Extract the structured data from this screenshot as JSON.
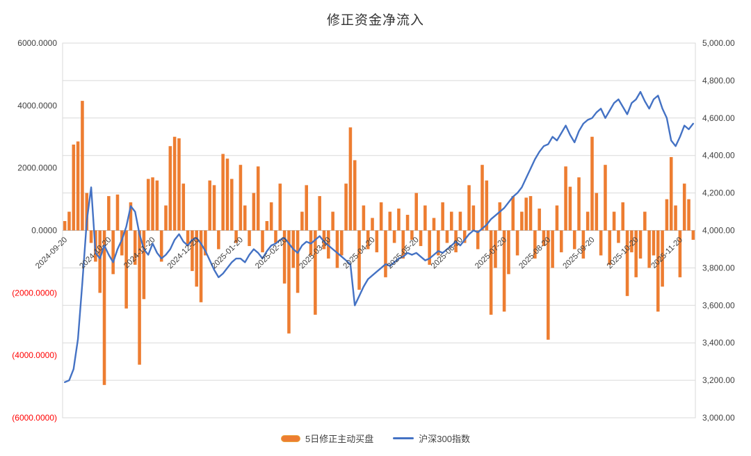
{
  "title": "修正资金净流入",
  "left_axis": {
    "labels": [
      "6000.0000",
      "4000.0000",
      "2000.0000",
      "0.0000",
      "(2000.0000)",
      "(4000.0000)",
      "(6000.0000)"
    ],
    "positive_color": "#404040",
    "negative_color": "#ff0000"
  },
  "right_axis": {
    "labels": [
      "5,000.00",
      "4,800.00",
      "4,600.00",
      "4,400.00",
      "4,200.00",
      "4,000.00",
      "3,800.00",
      "3,600.00",
      "3,400.00",
      "3,200.00",
      "3,000.00"
    ],
    "color": "#404040"
  },
  "x_axis": {
    "tick_labels": [
      "2024-09-20",
      "2024-10-20",
      "2024-11-20",
      "2024-12-20",
      "2025-01-20",
      "2025-02-20",
      "2025-03-20",
      "2025-04-20",
      "2025-05-20",
      "2025-06-20",
      "2025-07-20",
      "2025-08-20",
      "2025-09-20",
      "2025-10-20",
      "2025-11-20"
    ],
    "points_per_tick": 10,
    "label_color": "#404040"
  },
  "chart_data": {
    "type": "combo",
    "title": "修正资金净流入",
    "left_axis_range": [
      -6000,
      6000
    ],
    "right_axis_range": [
      3000,
      5000
    ],
    "gridlines": "horizontal",
    "legend_position": "bottom",
    "x_tick_labels": [
      "2024-09-20",
      "2024-10-20",
      "2024-11-20",
      "2024-12-20",
      "2025-01-20",
      "2025-02-20",
      "2025-03-20",
      "2025-04-20",
      "2025-05-20",
      "2025-06-20",
      "2025-07-20",
      "2025-08-20",
      "2025-09-20",
      "2025-10-20",
      "2025-11-20"
    ],
    "series": [
      {
        "name": "5日修正主动买盘",
        "type": "bar",
        "yaxis": "left",
        "color": "#ED7D31",
        "values": [
          300,
          600,
          2750,
          2850,
          4150,
          1200,
          -400,
          -1000,
          -2000,
          -4950,
          1100,
          -1400,
          1150,
          -800,
          -2500,
          900,
          -1100,
          -4300,
          -2200,
          1650,
          1700,
          1600,
          -1000,
          800,
          2700,
          3000,
          2950,
          1500,
          -500,
          -1300,
          -1800,
          -2300,
          -800,
          1600,
          1450,
          -600,
          2450,
          2300,
          1650,
          -400,
          2100,
          800,
          -500,
          1200,
          2050,
          -700,
          300,
          900,
          -400,
          1500,
          -1700,
          -3300,
          -1200,
          -2000,
          600,
          1450,
          -800,
          -2700,
          1100,
          -600,
          -900,
          600,
          -1200,
          -800,
          1500,
          3300,
          2250,
          -1900,
          800,
          -600,
          400,
          -700,
          900,
          -1500,
          600,
          -400,
          700,
          -900,
          500,
          -300,
          1200,
          -500,
          800,
          -1100,
          400,
          -800,
          900,
          -400,
          600,
          -700,
          600,
          -400,
          1450,
          800,
          -600,
          2100,
          1600,
          -2700,
          -1200,
          900,
          -2600,
          -1400,
          1100,
          -800,
          600,
          1050,
          1100,
          -900,
          700,
          -500,
          -3500,
          -1200,
          800,
          -700,
          2050,
          1400,
          -600,
          1700,
          -900,
          600,
          3000,
          1200,
          -800,
          2100,
          -1100,
          600,
          -400,
          900,
          -2100,
          -700,
          -1500,
          -900,
          600,
          -1200,
          -800,
          -2600,
          -1800,
          1000,
          2350,
          800,
          -1500,
          1500,
          1000,
          -300
        ]
      },
      {
        "name": "沪深300指数",
        "type": "line",
        "yaxis": "right",
        "color": "#4472C4",
        "values": [
          3190,
          3200,
          3260,
          3420,
          3720,
          4050,
          4230,
          3880,
          3850,
          3920,
          3870,
          3830,
          3900,
          3950,
          4020,
          4130,
          4100,
          3980,
          3900,
          3870,
          3930,
          3880,
          3850,
          3870,
          3900,
          3950,
          3980,
          3940,
          3920,
          3950,
          3960,
          3930,
          3890,
          3840,
          3790,
          3750,
          3770,
          3800,
          3830,
          3850,
          3850,
          3830,
          3870,
          3900,
          3880,
          3850,
          3890,
          3920,
          3930,
          3950,
          3960,
          3930,
          3900,
          3880,
          3920,
          3940,
          3930,
          3950,
          3970,
          3940,
          3920,
          3900,
          3880,
          3860,
          3840,
          3820,
          3600,
          3650,
          3700,
          3740,
          3760,
          3780,
          3800,
          3820,
          3810,
          3830,
          3850,
          3860,
          3880,
          3870,
          3880,
          3860,
          3840,
          3850,
          3870,
          3890,
          3880,
          3900,
          3920,
          3940,
          3920,
          3950,
          3980,
          4000,
          3990,
          4010,
          4030,
          4060,
          4080,
          4100,
          4120,
          4150,
          4180,
          4200,
          4230,
          4280,
          4330,
          4380,
          4420,
          4450,
          4460,
          4500,
          4480,
          4520,
          4560,
          4510,
          4470,
          4530,
          4570,
          4590,
          4600,
          4630,
          4650,
          4600,
          4640,
          4680,
          4700,
          4660,
          4620,
          4680,
          4700,
          4740,
          4690,
          4650,
          4700,
          4720,
          4650,
          4600,
          4480,
          4450,
          4500,
          4560,
          4540,
          4570
        ]
      }
    ]
  }
}
